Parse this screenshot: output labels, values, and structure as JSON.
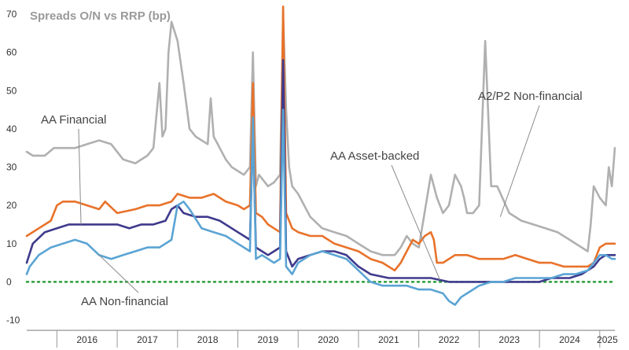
{
  "chart_data": {
    "type": "line",
    "title": "Spreads O/N vs RRP (bp)",
    "xlabel": "",
    "ylabel": "",
    "ylim": [
      -10,
      70
    ],
    "xlim": [
      2015.5,
      2025.25
    ],
    "yticks": [
      -10,
      0,
      10,
      20,
      30,
      40,
      50,
      60,
      70
    ],
    "xtick_labels": [
      "2016",
      "2017",
      "2018",
      "2019",
      "2020",
      "2021",
      "2022",
      "2023",
      "2024",
      "2025"
    ],
    "reference_line": {
      "y": 0,
      "style": "dotted",
      "color": "#2a9d3a"
    },
    "series": [
      {
        "name": "A2/P2 Non-financial",
        "color": "#b0b0b0",
        "x": [
          2015.5,
          2015.6,
          2015.7,
          2015.8,
          2015.95,
          2016.1,
          2016.3,
          2016.5,
          2016.7,
          2016.9,
          2017.1,
          2017.3,
          2017.5,
          2017.6,
          2017.7,
          2017.75,
          2017.8,
          2017.85,
          2017.9,
          2018.0,
          2018.1,
          2018.2,
          2018.3,
          2018.5,
          2018.55,
          2018.6,
          2018.8,
          2018.9,
          2019.0,
          2019.1,
          2019.2,
          2019.25,
          2019.3,
          2019.35,
          2019.4,
          2019.5,
          2019.6,
          2019.7,
          2019.75,
          2019.8,
          2019.85,
          2019.9,
          2020.0,
          2020.1,
          2020.2,
          2020.4,
          2020.6,
          2020.8,
          2021.0,
          2021.2,
          2021.4,
          2021.6,
          2021.7,
          2021.8,
          2021.9,
          2022.0,
          2022.2,
          2022.3,
          2022.4,
          2022.5,
          2022.6,
          2022.7,
          2022.75,
          2022.8,
          2022.9,
          2023.0,
          2023.1,
          2023.2,
          2023.3,
          2023.5,
          2023.7,
          2023.9,
          2024.1,
          2024.3,
          2024.5,
          2024.7,
          2024.8,
          2024.85,
          2024.9,
          2025.0,
          2025.1,
          2025.15,
          2025.2,
          2025.25
        ],
        "values": [
          34,
          33,
          33,
          33,
          35,
          35,
          35,
          36,
          37,
          36,
          32,
          31,
          33,
          35,
          52,
          38,
          40,
          60,
          68,
          63,
          52,
          40,
          38,
          36,
          48,
          38,
          32,
          30,
          29,
          28,
          30,
          60,
          25,
          28,
          27,
          25,
          26,
          28,
          70,
          45,
          30,
          25,
          23,
          20,
          17,
          14,
          13,
          12,
          10,
          8,
          7,
          7,
          9,
          12,
          10,
          9,
          28,
          22,
          18,
          20,
          28,
          25,
          22,
          18,
          18,
          20,
          63,
          25,
          25,
          18,
          16,
          15,
          14,
          13,
          11,
          9,
          8,
          15,
          25,
          22,
          20,
          30,
          25,
          35
        ]
      },
      {
        "name": "AA Financial",
        "color": "#e8722a",
        "x": [
          2015.5,
          2015.7,
          2015.9,
          2016.0,
          2016.1,
          2016.3,
          2016.5,
          2016.7,
          2016.8,
          2017.0,
          2017.3,
          2017.5,
          2017.7,
          2017.9,
          2018.0,
          2018.2,
          2018.4,
          2018.6,
          2018.8,
          2019.0,
          2019.1,
          2019.2,
          2019.25,
          2019.3,
          2019.4,
          2019.5,
          2019.6,
          2019.7,
          2019.75,
          2019.8,
          2019.9,
          2020.0,
          2020.2,
          2020.4,
          2020.6,
          2020.8,
          2021.0,
          2021.2,
          2021.4,
          2021.6,
          2021.7,
          2021.8,
          2021.9,
          2022.0,
          2022.1,
          2022.2,
          2022.25,
          2022.3,
          2022.4,
          2022.6,
          2022.8,
          2023.0,
          2023.2,
          2023.4,
          2023.6,
          2023.8,
          2024.0,
          2024.2,
          2024.4,
          2024.6,
          2024.7,
          2024.8,
          2024.9,
          2025.0,
          2025.1,
          2025.2,
          2025.25
        ],
        "values": [
          12,
          14,
          16,
          20,
          21,
          21,
          20,
          19,
          21,
          18,
          19,
          20,
          20,
          21,
          23,
          22,
          22,
          23,
          21,
          20,
          19,
          20,
          52,
          18,
          17,
          15,
          14,
          13,
          72,
          18,
          14,
          13,
          12,
          12,
          10,
          9,
          8,
          6,
          5,
          3,
          5,
          8,
          11,
          10,
          12,
          13,
          11,
          5,
          5,
          7,
          7,
          6,
          6,
          6,
          7,
          6,
          5,
          5,
          4,
          4,
          4,
          4,
          5,
          9,
          10,
          10,
          10
        ]
      },
      {
        "name": "AA Asset-backed",
        "color": "#3e3a8c",
        "x": [
          2015.5,
          2015.6,
          2015.8,
          2016.0,
          2016.2,
          2016.4,
          2016.6,
          2016.8,
          2017.0,
          2017.2,
          2017.4,
          2017.6,
          2017.8,
          2017.9,
          2018.0,
          2018.1,
          2018.3,
          2018.5,
          2018.7,
          2018.9,
          2019.0,
          2019.1,
          2019.2,
          2019.25,
          2019.3,
          2019.4,
          2019.5,
          2019.6,
          2019.7,
          2019.75,
          2019.8,
          2019.9,
          2020.0,
          2020.2,
          2020.4,
          2020.6,
          2020.8,
          2021.0,
          2021.2,
          2021.5,
          2021.8,
          2022.0,
          2022.2,
          2022.5,
          2022.8,
          2023.0,
          2023.2,
          2023.5,
          2023.8,
          2024.0,
          2024.2,
          2024.5,
          2024.7,
          2024.8,
          2024.9,
          2025.0,
          2025.1,
          2025.25
        ],
        "values": [
          5,
          10,
          13,
          14,
          15,
          15,
          15,
          15,
          15,
          14,
          15,
          15,
          16,
          19,
          20,
          18,
          17,
          17,
          16,
          14,
          13,
          12,
          11,
          40,
          9,
          8,
          7,
          8,
          9,
          58,
          8,
          4,
          6,
          7,
          8,
          8,
          7,
          4,
          2,
          1,
          1,
          1,
          1,
          0,
          0,
          0,
          0,
          0,
          0,
          0,
          1,
          1,
          2,
          3,
          4,
          6,
          7,
          7
        ]
      },
      {
        "name": "AA Non-financial",
        "color": "#5ba4d4",
        "x": [
          2015.5,
          2015.55,
          2015.7,
          2015.9,
          2016.1,
          2016.3,
          2016.5,
          2016.7,
          2016.9,
          2017.1,
          2017.3,
          2017.5,
          2017.7,
          2017.9,
          2018.0,
          2018.1,
          2018.2,
          2018.4,
          2018.6,
          2018.8,
          2019.0,
          2019.1,
          2019.2,
          2019.25,
          2019.3,
          2019.4,
          2019.5,
          2019.6,
          2019.7,
          2019.75,
          2019.8,
          2019.9,
          2020.0,
          2020.2,
          2020.4,
          2020.6,
          2020.8,
          2021.0,
          2021.2,
          2021.4,
          2021.6,
          2021.8,
          2022.0,
          2022.2,
          2022.4,
          2022.5,
          2022.6,
          2022.7,
          2022.8,
          2022.9,
          2023.0,
          2023.2,
          2023.4,
          2023.6,
          2023.8,
          2024.0,
          2024.2,
          2024.4,
          2024.6,
          2024.8,
          2025.0,
          2025.1,
          2025.2,
          2025.25
        ],
        "values": [
          2,
          4,
          7,
          9,
          10,
          11,
          10,
          7,
          6,
          7,
          8,
          9,
          9,
          11,
          20,
          21,
          19,
          14,
          13,
          12,
          10,
          9,
          8,
          43,
          6,
          7,
          6,
          5,
          6,
          45,
          4,
          2,
          5,
          7,
          8,
          7,
          6,
          3,
          0,
          -1,
          -1,
          -1,
          -2,
          -2,
          -3,
          -5,
          -6,
          -4,
          -3,
          -2,
          -1,
          0,
          0,
          1,
          1,
          1,
          1,
          2,
          2,
          3,
          7,
          7,
          6,
          6
        ]
      }
    ],
    "annotations": [
      {
        "text": "Spreads O/N vs RRP (bp)"
      },
      {
        "text": "AA Financial"
      },
      {
        "text": "AA Asset-backed"
      },
      {
        "text": "A2/P2 Non-financial"
      },
      {
        "text": "AA Non-financial"
      }
    ]
  }
}
